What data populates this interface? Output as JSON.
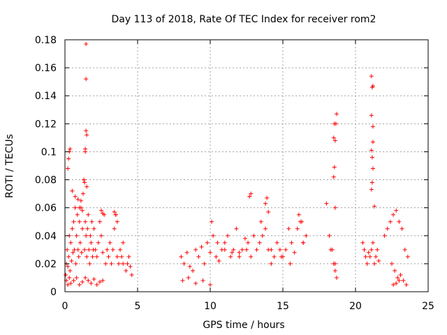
{
  "chart_data": {
    "type": "scatter",
    "title": "Day 113 of 2018, Rate Of TEC Index for receiver rom2",
    "xlabel": "GPS time / hours",
    "ylabel": "ROTI / TECUs",
    "xlim": [
      0,
      25
    ],
    "ylim": [
      0,
      0.18
    ],
    "xticks": [
      0,
      5,
      10,
      15,
      20,
      25
    ],
    "yticks": [
      0,
      0.02,
      0.04,
      0.06,
      0.08,
      0.1,
      0.12,
      0.14,
      0.16,
      0.18
    ],
    "xtick_labels": [
      "0",
      "5",
      "10",
      "15",
      "20",
      "25"
    ],
    "ytick_labels": [
      "0",
      "0.02",
      "0.04",
      "0.06",
      "0.08",
      "0.1",
      "0.12",
      "0.14",
      "0.16",
      "0.18"
    ],
    "grid": true,
    "marker": "+",
    "marker_color": "#ff0000",
    "series": [
      {
        "x": [
          0.05,
          0.1,
          0.15,
          0.2,
          0.25,
          0.3,
          0.35,
          0.4,
          0.45,
          0.5,
          0.55,
          0.6,
          0.65,
          0.7,
          0.75,
          0.8,
          0.85,
          0.9,
          0.95,
          1.0,
          1.05,
          1.1,
          1.15,
          1.2,
          1.25,
          1.3,
          1.35,
          1.4,
          1.45,
          1.5,
          1.55,
          1.6,
          1.65,
          1.7,
          1.75,
          1.8,
          1.85,
          1.9,
          1.95,
          2.0,
          2.1,
          2.2,
          2.3,
          2.4,
          2.5,
          2.6,
          2.7,
          2.8,
          2.9,
          3.0,
          3.1,
          3.2,
          3.3,
          3.4,
          3.5,
          3.6,
          3.7,
          3.8,
          3.9,
          4.0,
          4.2,
          4.3,
          4.4,
          4.5,
          4.6,
          0.1,
          0.2,
          0.3,
          0.4,
          0.6,
          0.8,
          1.0,
          1.2,
          1.4,
          1.6,
          1.8,
          2.0,
          2.2,
          2.4,
          2.6,
          0.2,
          0.25,
          0.3,
          0.35,
          1.3,
          1.35,
          1.4,
          1.45,
          1.5,
          1.45,
          1.45,
          1.4,
          1.5,
          0.5,
          0.7,
          0.9,
          1.0,
          1.1,
          1.2,
          2.5,
          2.6,
          3.4,
          3.5,
          3.6,
          4.0,
          8.0,
          8.2,
          8.4,
          8.6,
          8.8,
          9.0,
          9.2,
          9.4,
          9.6,
          9.8,
          10.0,
          10.2,
          10.4,
          10.6,
          10.8,
          11.0,
          11.2,
          11.4,
          11.6,
          11.8,
          12.0,
          12.2,
          12.4,
          12.6,
          12.8,
          13.0,
          13.2,
          13.4,
          13.6,
          13.8,
          14.0,
          14.2,
          14.4,
          14.6,
          14.8,
          15.0,
          15.2,
          15.4,
          15.6,
          15.8,
          16.0,
          16.2,
          16.4,
          16.6,
          8.1,
          8.5,
          9.0,
          9.5,
          10.0,
          10.1,
          10.5,
          11.0,
          11.5,
          12.0,
          12.5,
          12.7,
          12.8,
          13.5,
          13.8,
          13.9,
          14.0,
          14.2,
          14.9,
          15.5,
          16.1,
          16.3,
          16.4,
          18.0,
          18.2,
          18.4,
          18.5,
          18.6,
          18.6,
          18.6,
          18.7,
          18.5,
          18.55,
          18.6,
          18.65,
          18.7,
          18.5,
          18.55,
          18.3,
          20.5,
          20.6,
          20.7,
          20.8,
          20.9,
          21.0,
          21.1,
          21.2,
          21.3,
          21.4,
          21.5,
          21.6,
          21.1,
          21.15,
          21.2,
          21.15,
          21.1,
          21.2,
          21.2,
          21.1,
          21.15,
          21.2,
          21.1,
          21.3,
          22.0,
          22.2,
          22.4,
          22.6,
          22.8,
          23.0,
          23.2,
          23.4,
          23.6,
          22.5,
          22.7,
          22.9,
          23.1,
          23.3,
          22.6,
          22.8,
          23.0,
          23.5
        ],
        "y": [
          0.012,
          0.02,
          0.03,
          0.018,
          0.025,
          0.04,
          0.015,
          0.035,
          0.022,
          0.045,
          0.028,
          0.05,
          0.03,
          0.06,
          0.02,
          0.04,
          0.055,
          0.03,
          0.025,
          0.05,
          0.035,
          0.06,
          0.028,
          0.045,
          0.07,
          0.08,
          0.03,
          0.05,
          0.04,
          0.025,
          0.045,
          0.055,
          0.03,
          0.02,
          0.04,
          0.035,
          0.05,
          0.025,
          0.03,
          0.045,
          0.03,
          0.025,
          0.035,
          0.05,
          0.04,
          0.028,
          0.055,
          0.02,
          0.03,
          0.025,
          0.035,
          0.02,
          0.03,
          0.045,
          0.055,
          0.025,
          0.02,
          0.03,
          0.025,
          0.02,
          0.015,
          0.02,
          0.025,
          0.018,
          0.012,
          0.008,
          0.005,
          0.01,
          0.006,
          0.008,
          0.01,
          0.005,
          0.007,
          0.01,
          0.008,
          0.006,
          0.009,
          0.005,
          0.007,
          0.008,
          0.088,
          0.095,
          0.1,
          0.102,
          0.08,
          0.078,
          0.1,
          0.115,
          0.112,
          0.152,
          0.177,
          0.102,
          0.075,
          0.072,
          0.068,
          0.066,
          0.06,
          0.065,
          0.058,
          0.058,
          0.056,
          0.057,
          0.055,
          0.05,
          0.035,
          0.025,
          0.02,
          0.028,
          0.018,
          0.015,
          0.03,
          0.025,
          0.032,
          0.02,
          0.035,
          0.028,
          0.04,
          0.025,
          0.022,
          0.03,
          0.035,
          0.04,
          0.025,
          0.03,
          0.045,
          0.028,
          0.03,
          0.038,
          0.035,
          0.025,
          0.04,
          0.03,
          0.035,
          0.04,
          0.045,
          0.03,
          0.02,
          0.025,
          0.035,
          0.03,
          0.025,
          0.03,
          0.045,
          0.035,
          0.028,
          0.045,
          0.05,
          0.035,
          0.04,
          0.008,
          0.01,
          0.006,
          0.008,
          0.005,
          0.05,
          0.035,
          0.03,
          0.028,
          0.025,
          0.03,
          0.068,
          0.07,
          0.05,
          0.063,
          0.067,
          0.057,
          0.03,
          0.025,
          0.02,
          0.055,
          0.05,
          0.035,
          0.063,
          0.04,
          0.03,
          0.02,
          0.015,
          0.06,
          0.02,
          0.01,
          0.082,
          0.089,
          0.108,
          0.12,
          0.127,
          0.11,
          0.12,
          0.03,
          0.035,
          0.03,
          0.025,
          0.02,
          0.028,
          0.025,
          0.03,
          0.035,
          0.02,
          0.025,
          0.03,
          0.022,
          0.073,
          0.078,
          0.088,
          0.096,
          0.101,
          0.107,
          0.118,
          0.126,
          0.146,
          0.147,
          0.154,
          0.061,
          0.04,
          0.045,
          0.05,
          0.055,
          0.058,
          0.05,
          0.045,
          0.03,
          0.025,
          0.02,
          0.015,
          0.01,
          0.012,
          0.008,
          0.005,
          0.006,
          0.008,
          0.005
        ]
      }
    ]
  }
}
